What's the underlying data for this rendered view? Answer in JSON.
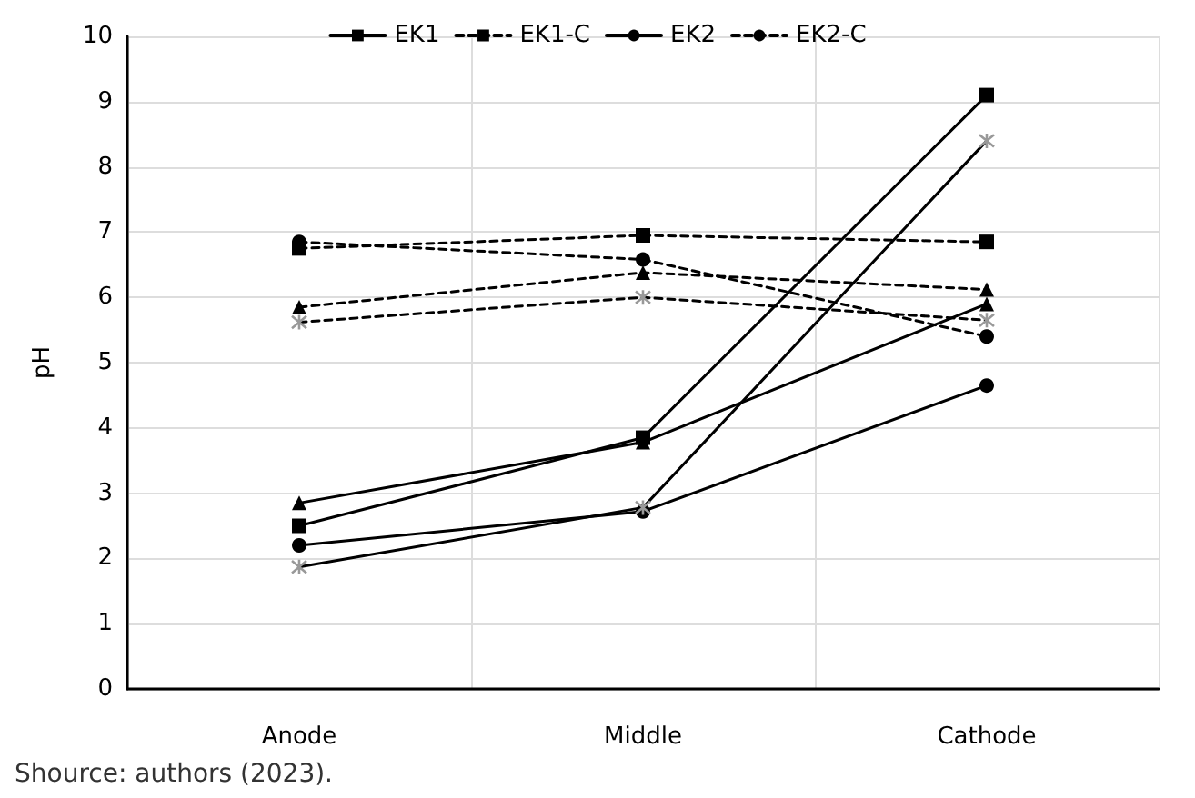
{
  "chart_data": {
    "type": "line",
    "ylabel": "pH",
    "categories": [
      "Anode",
      "Middle",
      "Cathode"
    ],
    "ylim": [
      0,
      10
    ],
    "yticks": [
      0,
      1,
      2,
      3,
      4,
      5,
      6,
      7,
      8,
      9,
      10
    ],
    "grid": true,
    "legend": "top",
    "annotations": [
      "Shource: authors (2023)."
    ],
    "series": [
      {
        "name": "EK1",
        "color": "#000000",
        "marker": "square",
        "line_style": "solid",
        "values": [
          2.5,
          3.85,
          9.1
        ]
      },
      {
        "name": "EK1-C",
        "color": "#000000",
        "marker": "square",
        "line_style": "dashed",
        "values": [
          6.75,
          6.95,
          6.85
        ]
      },
      {
        "name": "EK2",
        "color": "#000000",
        "marker": "circle",
        "line_style": "solid",
        "values": [
          2.2,
          2.72,
          4.65
        ]
      },
      {
        "name": "EK2-C",
        "color": "#000000",
        "marker": "circle",
        "line_style": "dashed",
        "values": [
          6.85,
          6.58,
          5.4
        ]
      },
      {
        "color": "#000000",
        "marker": "triangle",
        "line_style": "solid",
        "values": [
          2.85,
          3.78,
          5.9
        ]
      },
      {
        "color": "#999999",
        "marker": "cross",
        "line_style": "solid",
        "values": [
          1.87,
          2.78,
          8.4
        ]
      },
      {
        "color": "#000000",
        "marker": "triangle",
        "line_style": "dashed",
        "values": [
          5.85,
          6.38,
          6.12
        ]
      },
      {
        "color": "#999999",
        "marker": "cross",
        "line_style": "dashed",
        "values": [
          5.62,
          6.0,
          5.65
        ]
      }
    ]
  }
}
